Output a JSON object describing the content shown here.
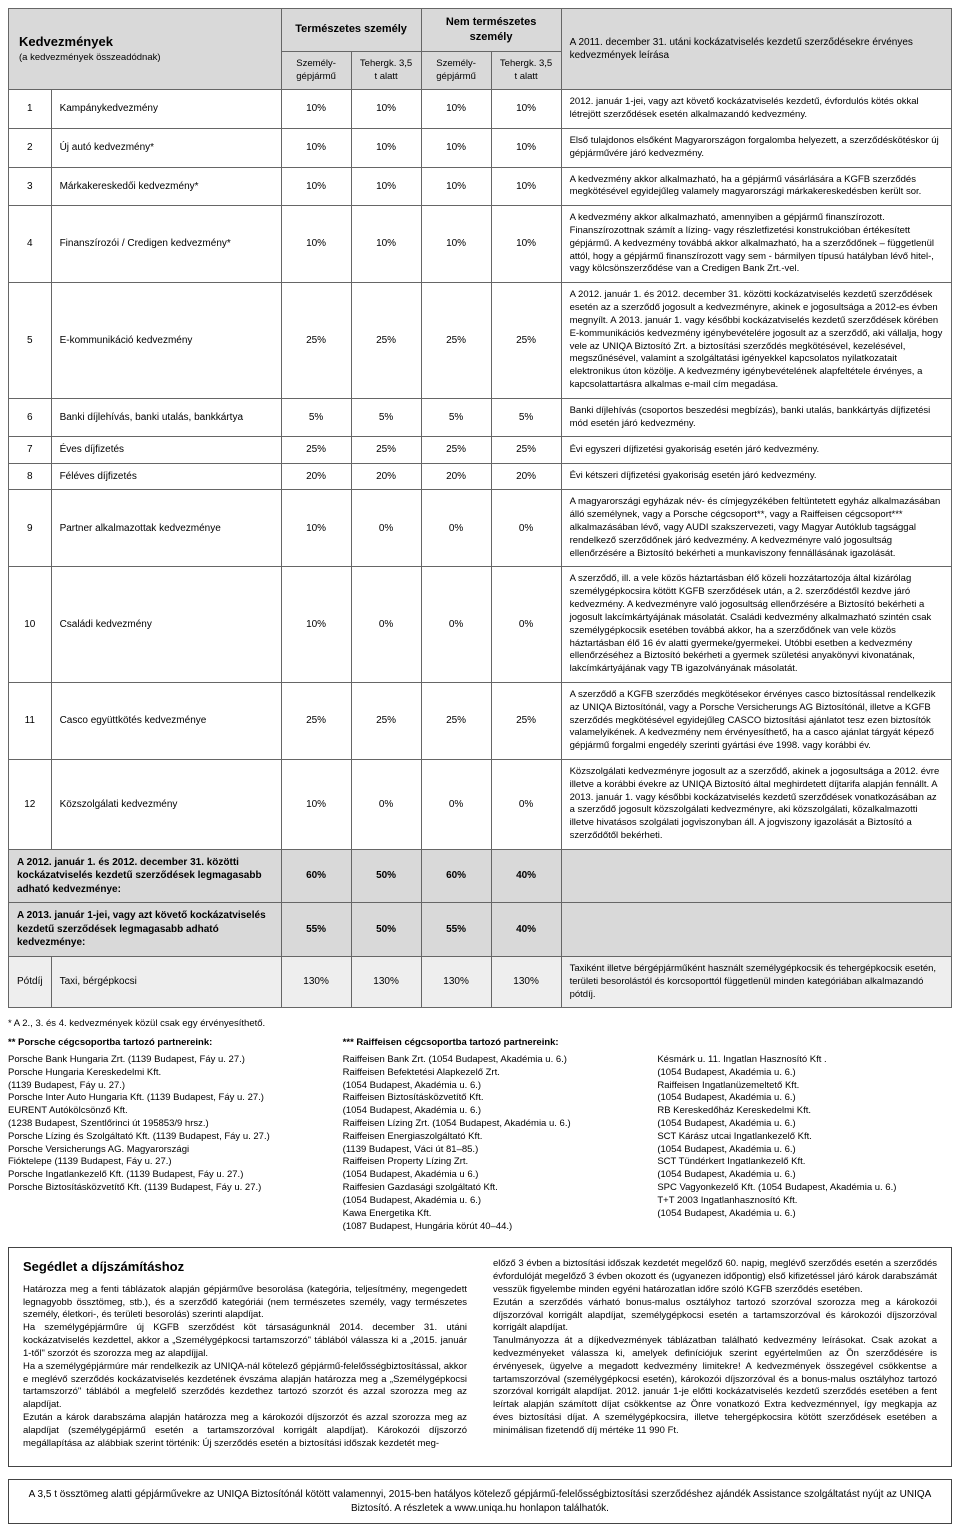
{
  "head": {
    "title": "Kedvezmények",
    "subtitle": "(a kedvezmények összeadódnak)",
    "group1": "Természetes személy",
    "group2": "Nem természetes személy",
    "col_a": "Személy-\ngépjármű",
    "col_b": "Tehergk.\n3,5 t alatt",
    "desc_head": "A 2011. december 31. utáni kockázatviselés kezdetű szerződésekre érvényes kedvezmények leírása"
  },
  "rows": [
    {
      "n": "1",
      "name": "Kampánykedvezmény",
      "v": [
        "10%",
        "10%",
        "10%",
        "10%"
      ],
      "desc": "2012. január 1-jei, vagy azt követő kockázatviselés kezdetű, évfordulós kötés okkal létrejött szerződések esetén alkalmazandó kedvezmény."
    },
    {
      "n": "2",
      "name": "Új autó kedvezmény*",
      "v": [
        "10%",
        "10%",
        "10%",
        "10%"
      ],
      "desc": "Első tulajdonos elsőként Magyarországon forgalomba helyezett, a szerződéskötéskor új gépjárművére járó kedvezmény."
    },
    {
      "n": "3",
      "name": "Márkakereskedői kedvezmény*",
      "v": [
        "10%",
        "10%",
        "10%",
        "10%"
      ],
      "desc": "A kedvezmény akkor alkalmazható, ha a gépjármű vásárlására a KGFB szerződés megkötésével egyidejűleg valamely magyarországi márkakereskedésben került sor."
    },
    {
      "n": "4",
      "name": "Finanszírozói / Credigen kedvezmény*",
      "v": [
        "10%",
        "10%",
        "10%",
        "10%"
      ],
      "desc": "A kedvezmény akkor alkalmazható, amennyiben a gépjármű finanszírozott. Finanszírozottnak számít a lízing- vagy részletfizetési konstrukcióban értékesített gépjármű. A kedvezmény továbbá akkor alkalmazható, ha a szerződőnek – függetlenül attól, hogy a gépjármű finanszírozott vagy sem - bármilyen típusú hatályban lévő hitel-, vagy kölcsönszerződése van a Credigen Bank Zrt.-vel."
    },
    {
      "n": "5",
      "name": "E-kommunikáció kedvezmény",
      "v": [
        "25%",
        "25%",
        "25%",
        "25%"
      ],
      "desc": "A 2012. január 1. és 2012. december 31. közötti kockázatviselés kezdetű szerződések esetén az a szerződő jogosult a kedvezményre, akinek e jogosultsága a 2012-es évben megnyílt. A 2013. január 1. vagy későbbi kockázatviselés kezdetű szerződések körében E-kommunikációs kedvezmény igénybevételére jogosult az a szerződő, aki vállalja, hogy vele az UNIQA Biztosító Zrt. a biztosítási szerződés megkötésével, kezelésével, megszűnésével, valamint a szolgáltatási igényekkel kapcsolatos nyilatkozatait elektronikus úton közölje. A kedvezmény igénybevételének alapfeltétele érvényes, a kapcsolattartásra alkalmas e-mail cím megadása."
    },
    {
      "n": "6",
      "name": "Banki díjlehívás, banki utalás, bankkártya",
      "v": [
        "5%",
        "5%",
        "5%",
        "5%"
      ],
      "desc": "Banki díjlehívás (csoportos beszedési megbízás), banki utalás, bankkártyás díjfizetési mód esetén járó kedvezmény."
    },
    {
      "n": "7",
      "name": "Éves díjfizetés",
      "v": [
        "25%",
        "25%",
        "25%",
        "25%"
      ],
      "desc": "Évi egyszeri díjfizetési gyakoriság esetén járó kedvezmény."
    },
    {
      "n": "8",
      "name": "Féléves díjfizetés",
      "v": [
        "20%",
        "20%",
        "20%",
        "20%"
      ],
      "desc": "Évi kétszeri díjfizetési gyakoriság esetén járó kedvezmény."
    },
    {
      "n": "9",
      "name": "Partner alkalmazottak kedvezménye",
      "v": [
        "10%",
        "0%",
        "0%",
        "0%"
      ],
      "desc": "A magyarországi egyházak név- és címjegyzékében feltüntetett egyház alkalmazásában álló személynek, vagy a Porsche cégcsoport**, vagy a Raiffeisen cégcsoport*** alkalmazásában lévő, vagy AUDI szakszervezeti, vagy Magyar Autóklub tagsággal rendelkező szerződőnek járó kedvezmény. A kedvezményre való jogosultság ellenőrzésére a Biztosító bekérheti a munkaviszony fennállásának igazolását."
    },
    {
      "n": "10",
      "name": "Családi kedvezmény",
      "v": [
        "10%",
        "0%",
        "0%",
        "0%"
      ],
      "desc": "A szerződő, ill. a vele közös háztartásban élő közeli hozzátartozója által kizárólag személygépkocsira kötött KGFB szerződések után, a 2. szerződéstől kezdve járó kedvezmény. A kedvezményre való jogosultság ellenőrzésére a Biztosító bekérheti a jogosult lakcímkártyájának másolatát. Családi kedvezmény alkalmazható szintén csak személygépkocsik esetében továbbá akkor, ha a szerződőnek van vele közös háztartásban élő 16 év alatti gyermeke/gyermekei. Utóbbi esetben a kedvezmény ellenőrzéséhez a Biztosító bekérheti a gyermek születési anyakönyvi kivonatának, lakcímkártyájának vagy TB igazolványának másolatát."
    },
    {
      "n": "11",
      "name": "Casco együttkötés kedvezménye",
      "v": [
        "25%",
        "25%",
        "25%",
        "25%"
      ],
      "desc": "A szerződő a KGFB szerződés megkötésekor érvényes casco biztosítással rendelkezik az UNIQA Biztosítónál, vagy a Porsche Versicherungs AG Biztosítónál, illetve a KGFB szerződés megkötésével egyidejűleg CASCO biztosítási ajánlatot tesz ezen biztosítók valamelyikének. A kedvezmény nem érvényesíthető, ha a casco ajánlat tárgyát képező gépjármű forgalmi engedély szerinti gyártási éve 1998. vagy korábbi év."
    },
    {
      "n": "12",
      "name": "Közszolgálati kedvezmény",
      "v": [
        "10%",
        "0%",
        "0%",
        "0%"
      ],
      "desc": "Közszolgálati kedvezményre jogosult az a szerződő, akinek a jogosultsága a 2012. évre illetve a korábbi évekre az UNIQA Biztosító által meghirdetett díjtarifa alapján fennállt. A 2013. január 1. vagy későbbi kockázatviselés kezdetű szerződések vonatkozásában az a szerződő jogosult közszolgálati kedvezményre, aki közszolgálati, közalkalmazotti illetve hivatásos szolgálati jogviszonyban áll. A jogviszony igazolását a Biztosító a szerződőtől bekérheti."
    }
  ],
  "summary1": {
    "name": "A 2012. január 1. és 2012. december 31. közötti kockázatviselés kezdetű szerződések legmagasabb adható kedvezménye:",
    "v": [
      "60%",
      "50%",
      "60%",
      "40%"
    ]
  },
  "summary2": {
    "name": "A 2013. január 1-jei, vagy azt követő kockázatviselés kezdetű szerződések legmagasabb adható kedvezménye:",
    "v": [
      "55%",
      "50%",
      "55%",
      "40%"
    ]
  },
  "potdij": {
    "label": "Pótdíj",
    "name": "Taxi, bérgépkocsi",
    "v": [
      "130%",
      "130%",
      "130%",
      "130%"
    ],
    "desc": "Taxiként illetve bérgépjárműként használt személygépkocsik és tehergépkocsik esetén, területi besorolástól és korcsoporttól függetlenül minden kategóriában alkalmazandó pótdíj."
  },
  "footnote": "* A 2., 3. és 4. kedvezmények közül csak egy érvényesíthető.",
  "partners": {
    "h1": "** Porsche cégcsoportba tartozó partnereink:",
    "c1": "Porsche Bank Hungaria Zrt. (1139 Budapest, Fáy u. 27.)\nPorsche Hungaria Kereskedelmi Kft.\n    (1139 Budapest, Fáy u. 27.)\nPorsche Inter Auto Hungaria Kft. (1139 Budapest, Fáy u. 27.)\nEURENT Autókölcsönző Kft.\n    (1238 Budapest, Szentlőrinci út 195853/9 hrsz.)\nPorsche Lízing és Szolgáltató Kft. (1139 Budapest, Fáy u. 27.)\nPorsche Versicherungs AG. Magyarországi\n    Fióktelepe (1139 Budapest, Fáy u. 27.)\nPorsche Ingatlankezelő Kft. (1139 Budapest, Fáy u. 27.)\nPorsche Biztosításközvetítő Kft. (1139 Budapest, Fáy u. 27.)",
    "h2": "*** Raiffeisen cégcsoportba tartozó partnereink:",
    "c2a": "Raiffeisen Bank Zrt. (1054 Budapest, Akadémia u. 6.)\nRaiffeisen Befektetési Alapkezelő Zrt.\n    (1054 Budapest, Akadémia u. 6.)\nRaiffeisen Biztosításközvetítő Kft.\n    (1054 Budapest, Akadémia u. 6.)\nRaiffeisen Lízing Zrt. (1054 Budapest, Akadémia u. 6.)\nRaiffeisen Energiaszolgáltató Kft.\n    (1139 Budapest, Váci út 81–85.)\nRaiffeisen Property Lízing Zrt.\n    (1054 Budapest, Akadémia u 6.)\nRaiffesien Gazdasági szolgáltató Kft.\n    (1054 Budapest, Akadémia u. 6.)\nKawa Energetika Kft.\n    (1087 Budapest, Hungária körút 40–44.)",
    "c2b": "Késmárk u. 11. Ingatlan Hasznosító Kft .\n    (1054 Budapest, Akadémia u. 6.)\nRaiffeisen Ingatlanüzemeltető Kft.\n    (1054 Budapest, Akadémia u. 6.)\nRB Kereskedőház Kereskedelmi Kft.\n    (1054 Budapest, Akadémia u. 6.)\nSCT Kárász utcai Ingatlankezelő Kft.\n    (1054 Budapest, Akadémia u. 6.)\nSCT Tündérkert Ingatlankezelő Kft.\n    (1054 Budapest, Akadémia u. 6.)\nSPC Vagyonkezelő Kft. (1054 Budapest, Akadémia u. 6.)\nT+T 2003 Ingatlanhasznosító Kft.\n    (1054 Budapest, Akadémia u. 6.)"
  },
  "seged": {
    "title": "Segédlet a díjszámításhoz",
    "col1": "Határozza meg a fenti táblázatok alapján gépjárműve besorolása (kategória, teljesítmény, megengedett legnagyobb össztömeg, stb.), és a szerződő kategóriái (nem természetes személy, vagy természetes személy, életkori-, és területi besorolás) szerinti alapdíjat.\nHa személygépjárműre új KGFB szerződést köt társaságunknál 2014. december 31. utáni kockázatviselés kezdettel, akkor a „Személygépkocsi tartamszorzó\" táblából válassza ki a „2015. január 1-től\" szorzót és szorozza meg az alapdíjjal.\nHa a személygépjármúre már rendelkezik az UNIQA-nál kötelező gépjármű-felelősségbiztosítással, akkor e meglévő szerződés kockázatviselés kezdetének évszáma alapján határozza meg a „Személygépkocsi tartamszorzó\" táblából a megfelelő szerződés kezdethez tartozó szorzót és azzal szorozza meg az alapdíjat.\nEzután a károk darabszáma alapján határozza meg a károkozói díjszorzót és azzal szorozza meg az alapdíjat (személygépjármű esetén a tartamszorzóval korrigált alapdíjat). Károkozói díjszorzó megállapítása az alábbiak szerint történik: Új szerződés esetén a biztosítási időszak kezdetét meg-",
    "col2": "előző 3 évben a biztosítási időszak kezdetét megelőző 60. napig, meglévő szerződés esetén a szerződés évfordulóját megelőző 3 évben okozott és (ugyanezen időpontig) első kifizetéssel járó károk darabszámát vesszük figyelembe minden egyéni határozatlan időre szóló KGFB szerződés esetében.\nEzután a szerződés várható bonus-malus osztályhoz tartozó szorzóval szorozza meg a károkozói díjszorzóval korrigált alapdíjat, személygépkocsi esetén a tartamszorzóval és károkozói díjszorzóval korrigált alapdíjat.\nTanulmányozza át a díjkedvezmények táblázatban található kedvezmény leírásokat. Csak azokat a kedvezményeket válassza ki, amelyek definíciójuk szerint egyértelműen az Ön szerződésére is érvényesek, ügyelve a megadott kedvezmény limitekre! A kedvezmények összegével csökkentse a tartamszorzóval (személygépkocsi esetén), károkozói díjszorzóval és a bonus-malus osztályhoz tartozó szorzóval korrigált alapdíjat. 2012. január 1-je előtti kockázatviselés kezdetű szerződés esetében a fent leírtak alapján számított díjat csökkentse az Önre vonatkozó Extra kedvezménnyel, így megkapja az éves biztosítási díjat. A személygépkocsira, illetve tehergépkocsira kötött szerződések esetében a minimálisan fizetendő díj mértéke 11 990 Ft."
  },
  "assist": "A 3,5 t össztömeg alatti gépjárművekre az UNIQA Biztosítónál kötött valamennyi, 2015-ben hatályos kötelező gépjármű-felelősségbiztosítási szerződéshez ajándék Assistance szolgáltatást nyújt az UNIQA Biztosító. A részletek a www.uniqa.hu honlapon találhatók."
}
